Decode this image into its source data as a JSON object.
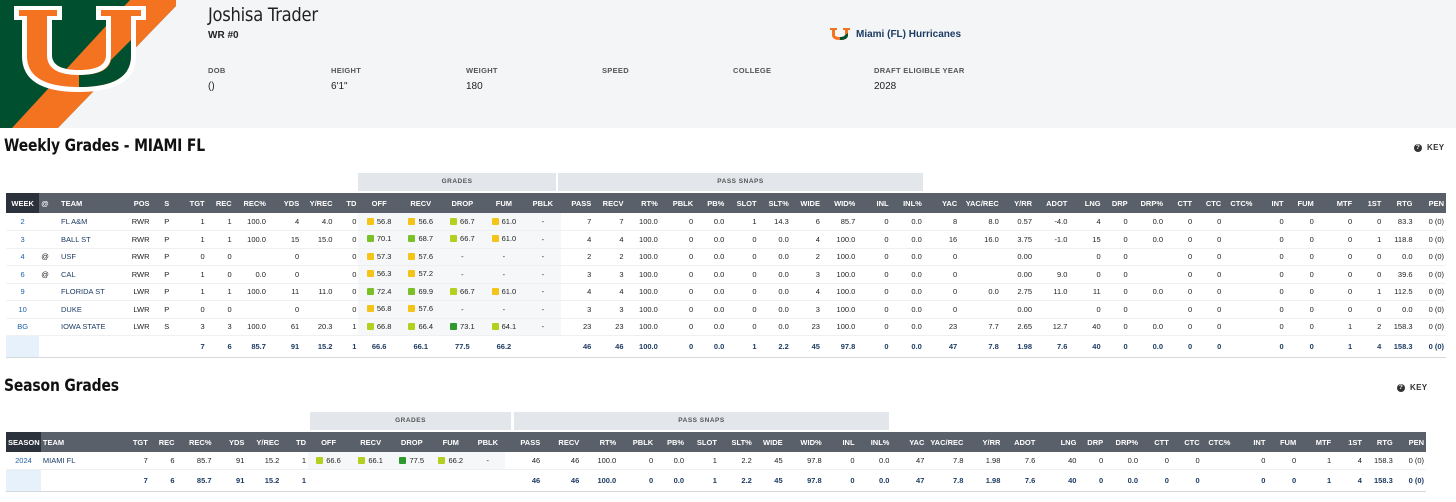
{
  "player": {
    "name": "Joshisa Trader",
    "position_number": "WR #0",
    "team": "Miami (FL) Hurricanes",
    "bio": [
      {
        "label": "DOB",
        "value": "()"
      },
      {
        "label": "HEIGHT",
        "value": "6'1\""
      },
      {
        "label": "WEIGHT",
        "value": "180"
      },
      {
        "label": "SPEED",
        "value": ""
      },
      {
        "label": "COLLEGE",
        "value": ""
      },
      {
        "label": "DRAFT ELIGIBLE YEAR",
        "value": "2028"
      }
    ]
  },
  "colors": {
    "orange": "#f47321",
    "green": "#005030",
    "grade_green": "#7cc027",
    "grade_dkgreen": "#2e9a2e",
    "grade_yellow": "#f5c419",
    "grade_olive": "#b5cf1f"
  },
  "weekly": {
    "title": "Weekly Grades - MIAMI FL",
    "key_label": "KEY",
    "group_grades": "GRADES",
    "group_pass_snaps": "PASS SNAPS",
    "columns": [
      "WEEK",
      "@",
      "TEAM",
      "POS",
      "S",
      "TGT",
      "REC",
      "REC%",
      "YDS",
      "Y/REC",
      "TD",
      "OFF",
      "RECV",
      "DROP",
      "FUM",
      "PBLK",
      "PASS",
      "RECV",
      "RT%",
      "PBLK",
      "PB%",
      "SLOT",
      "SLT%",
      "WIDE",
      "WID%",
      "INL",
      "INL%",
      "YAC",
      "YAC/REC",
      "Y/RR",
      "ADOT",
      "LNG",
      "DRP",
      "DRP%",
      "CTT",
      "CTC",
      "CTC%",
      "INT",
      "FUM",
      "MTF",
      "1ST",
      "RTG",
      "PEN"
    ],
    "rows": [
      {
        "cells": [
          "2",
          "",
          "FL A&M",
          "RWR",
          "P",
          "1",
          "1",
          "100.0",
          "4",
          "4.0",
          "0",
          "56.8",
          "56.6",
          "66.7",
          "61.0",
          "-",
          "7",
          "7",
          "100.0",
          "0",
          "0.0",
          "1",
          "14.3",
          "6",
          "85.7",
          "0",
          "0.0",
          "8",
          "8.0",
          "0.57",
          "-4.0",
          "4",
          "0",
          "0.0",
          "0",
          "0",
          "",
          "0",
          "0",
          "0",
          "0",
          "83.3",
          "0 (0)"
        ],
        "g": [
          "yellow",
          "yellow",
          "olive",
          "yellow"
        ]
      },
      {
        "cells": [
          "3",
          "",
          "BALL ST",
          "RWR",
          "P",
          "1",
          "1",
          "100.0",
          "15",
          "15.0",
          "0",
          "70.1",
          "68.7",
          "66.7",
          "61.0",
          "-",
          "4",
          "4",
          "100.0",
          "0",
          "0.0",
          "0",
          "0.0",
          "4",
          "100.0",
          "0",
          "0.0",
          "16",
          "16.0",
          "3.75",
          "-1.0",
          "15",
          "0",
          "0.0",
          "0",
          "0",
          "",
          "0",
          "0",
          "0",
          "1",
          "118.8",
          "0 (0)"
        ],
        "g": [
          "green",
          "green",
          "olive",
          "yellow"
        ]
      },
      {
        "cells": [
          "4",
          "@",
          "USF",
          "RWR",
          "P",
          "0",
          "0",
          "",
          "0",
          "",
          "0",
          "57.3",
          "57.6",
          "-",
          "-",
          "-",
          "2",
          "2",
          "100.0",
          "0",
          "0.0",
          "0",
          "0.0",
          "2",
          "100.0",
          "0",
          "0.0",
          "0",
          "",
          "0.00",
          "",
          "0",
          "0",
          "",
          "0",
          "0",
          "",
          "0",
          "0",
          "0",
          "0",
          "0.0",
          "0 (0)"
        ],
        "g": [
          "yellow",
          "yellow",
          "",
          ""
        ]
      },
      {
        "cells": [
          "6",
          "@",
          "CAL",
          "RWR",
          "P",
          "1",
          "0",
          "0.0",
          "0",
          "",
          "0",
          "56.3",
          "57.2",
          "-",
          "-",
          "-",
          "3",
          "3",
          "100.0",
          "0",
          "0.0",
          "0",
          "0.0",
          "3",
          "100.0",
          "0",
          "0.0",
          "0",
          "",
          "0.00",
          "9.0",
          "0",
          "0",
          "",
          "0",
          "0",
          "",
          "0",
          "0",
          "0",
          "0",
          "39.6",
          "0 (0)"
        ],
        "g": [
          "yellow",
          "yellow",
          "",
          ""
        ]
      },
      {
        "cells": [
          "9",
          "",
          "FLORIDA ST",
          "LWR",
          "P",
          "1",
          "1",
          "100.0",
          "11",
          "11.0",
          "0",
          "72.4",
          "69.9",
          "66.7",
          "61.0",
          "-",
          "4",
          "4",
          "100.0",
          "0",
          "0.0",
          "0",
          "0.0",
          "4",
          "100.0",
          "0",
          "0.0",
          "0",
          "0.0",
          "2.75",
          "11.0",
          "11",
          "0",
          "0.0",
          "0",
          "0",
          "",
          "0",
          "0",
          "0",
          "1",
          "112.5",
          "0 (0)"
        ],
        "g": [
          "green",
          "green",
          "olive",
          "yellow"
        ]
      },
      {
        "cells": [
          "10",
          "",
          "DUKE",
          "LWR",
          "P",
          "0",
          "0",
          "",
          "0",
          "",
          "0",
          "56.8",
          "57.6",
          "-",
          "-",
          "-",
          "3",
          "3",
          "100.0",
          "0",
          "0.0",
          "0",
          "0.0",
          "3",
          "100.0",
          "0",
          "0.0",
          "0",
          "",
          "0.00",
          "",
          "0",
          "0",
          "",
          "0",
          "0",
          "",
          "0",
          "0",
          "0",
          "0",
          "0.0",
          "0 (0)"
        ],
        "g": [
          "yellow",
          "yellow",
          "",
          ""
        ]
      },
      {
        "cells": [
          "BG",
          "",
          "IOWA STATE",
          "LWR",
          "S",
          "3",
          "3",
          "100.0",
          "61",
          "20.3",
          "1",
          "66.8",
          "66.4",
          "73.1",
          "64.1",
          "-",
          "23",
          "23",
          "100.0",
          "0",
          "0.0",
          "0",
          "0.0",
          "23",
          "100.0",
          "0",
          "0.0",
          "23",
          "7.7",
          "2.65",
          "12.7",
          "40",
          "0",
          "0.0",
          "0",
          "0",
          "",
          "0",
          "0",
          "1",
          "2",
          "158.3",
          "0 (0)"
        ],
        "g": [
          "olive",
          "olive",
          "dkgreen",
          "olive"
        ]
      }
    ],
    "totals": [
      "",
      "",
      "",
      "",
      "",
      "7",
      "6",
      "85.7",
      "91",
      "15.2",
      "1",
      "66.6",
      "66.1",
      "77.5",
      "66.2",
      "",
      "46",
      "46",
      "100.0",
      "0",
      "0.0",
      "1",
      "2.2",
      "45",
      "97.8",
      "0",
      "0.0",
      "47",
      "7.8",
      "1.98",
      "7.6",
      "40",
      "0",
      "0.0",
      "0",
      "0",
      "",
      "0",
      "0",
      "1",
      "4",
      "158.3",
      "0 (0)"
    ]
  },
  "season": {
    "title": "Season Grades",
    "key_label": "KEY",
    "group_grades": "GRADES",
    "group_pass_snaps": "PASS SNAPS",
    "columns": [
      "SEASON",
      "TEAM",
      "TGT",
      "REC",
      "REC%",
      "YDS",
      "Y/REC",
      "TD",
      "OFF",
      "RECV",
      "DROP",
      "FUM",
      "PBLK",
      "PASS",
      "RECV",
      "RT%",
      "PBLK",
      "PB%",
      "SLOT",
      "SLT%",
      "WIDE",
      "WID%",
      "INL",
      "INL%",
      "YAC",
      "YAC/REC",
      "Y/RR",
      "ADOT",
      "LNG",
      "DRP",
      "DRP%",
      "CTT",
      "CTC",
      "CTC%",
      "INT",
      "FUM",
      "MTF",
      "1ST",
      "RTG",
      "PEN"
    ],
    "rows": [
      {
        "cells": [
          "2024",
          "MIAMI FL",
          "7",
          "6",
          "85.7",
          "91",
          "15.2",
          "1",
          "66.6",
          "66.1",
          "77.5",
          "66.2",
          "-",
          "46",
          "46",
          "100.0",
          "0",
          "0.0",
          "1",
          "2.2",
          "45",
          "97.8",
          "0",
          "0.0",
          "47",
          "7.8",
          "1.98",
          "7.6",
          "40",
          "0",
          "0.0",
          "0",
          "0",
          "",
          "0",
          "0",
          "1",
          "4",
          "158.3",
          "0 (0)"
        ],
        "g": [
          "olive",
          "olive",
          "dkgreen",
          "olive"
        ]
      }
    ],
    "totals": [
      "",
      "",
      "7",
      "6",
      "85.7",
      "91",
      "15.2",
      "1",
      "",
      "",
      "",
      "",
      "",
      "46",
      "46",
      "100.0",
      "0",
      "0.0",
      "1",
      "2.2",
      "45",
      "97.8",
      "0",
      "0.0",
      "47",
      "7.8",
      "1.98",
      "7.6",
      "40",
      "0",
      "0.0",
      "0",
      "0",
      "",
      "0",
      "0",
      "1",
      "4",
      "158.3",
      "0 (0)"
    ]
  }
}
